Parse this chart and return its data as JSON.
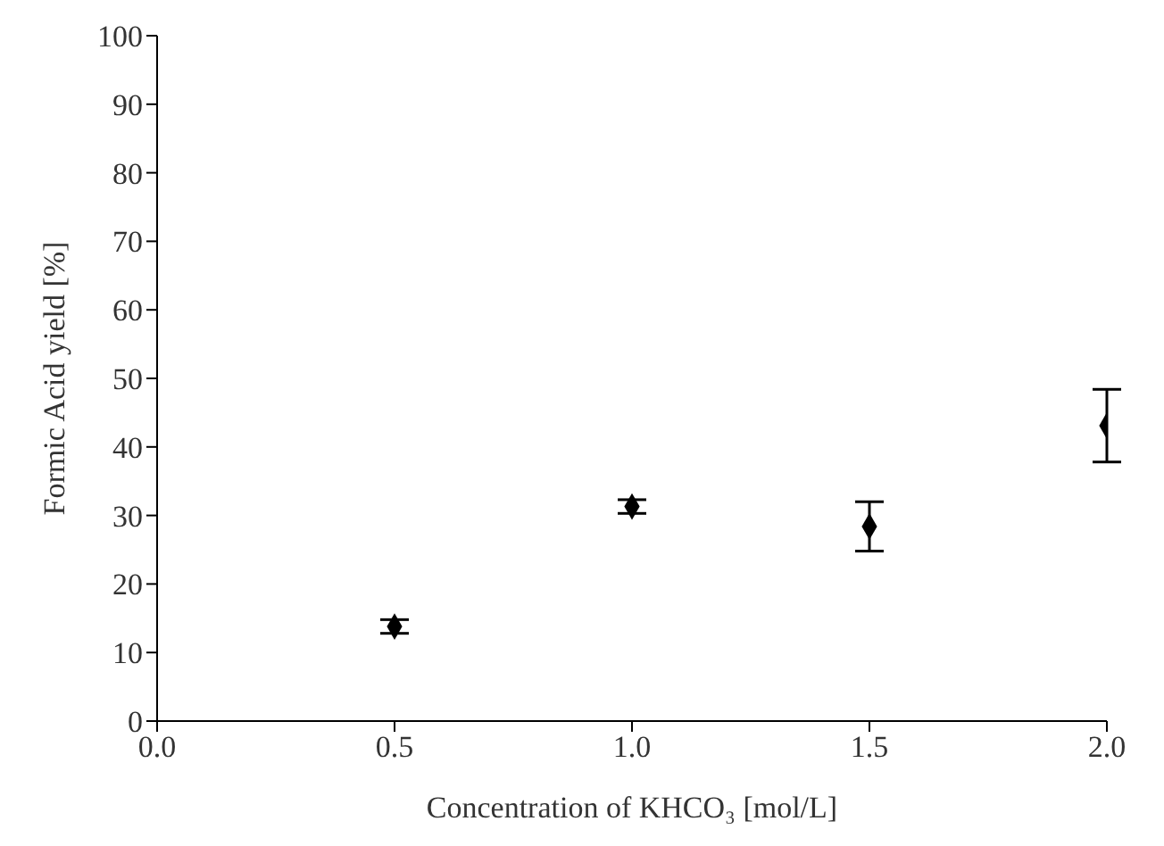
{
  "chart_data": {
    "type": "scatter",
    "xlabel": "Concentration of KHCO₃ [mol/L]",
    "ylabel": "Formic Acid yield [%]",
    "x": [
      0.5,
      1.0,
      1.5,
      2.0
    ],
    "series": [
      {
        "color": "#000000",
        "values": [
          13.8,
          31.3,
          28.4,
          43.1
        ],
        "errors": [
          1,
          1,
          3.6,
          5.3
        ]
      }
    ],
    "xlim": [
      0,
      2
    ],
    "xticks": [
      {
        "value": 0,
        "label": "0.0"
      },
      {
        "value": 0.5,
        "label": "0.5"
      },
      {
        "value": 1,
        "label": "1.0"
      },
      {
        "value": 1.5,
        "label": "1.5"
      },
      {
        "value": 2,
        "label": "2.0"
      }
    ],
    "ylim": [
      0,
      100
    ],
    "yticks": [
      0,
      10,
      20,
      30,
      40,
      50,
      60,
      70,
      80,
      90,
      100
    ],
    "grid": false,
    "legend": false,
    "marker": "diamond"
  }
}
